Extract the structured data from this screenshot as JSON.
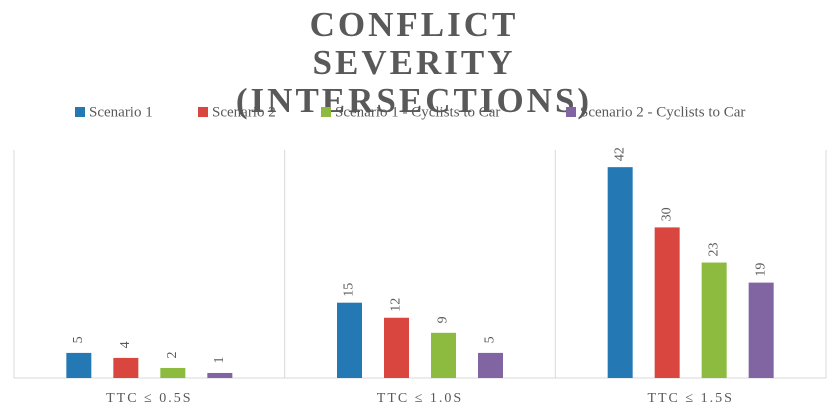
{
  "chart_data": {
    "type": "bar",
    "title": "CONFLICT SEVERITY (INTERSECTIONS)",
    "categories": [
      "TTC ≤ 0.5S",
      "TTC ≤ 1.0S",
      "TTC ≤ 1.5S"
    ],
    "series": [
      {
        "name": "Scenario 1",
        "color": "#2479b5",
        "values": [
          5,
          15,
          42
        ]
      },
      {
        "name": "Scenario 2",
        "color": "#d9463f",
        "values": [
          4,
          12,
          30
        ]
      },
      {
        "name": "Scenario 1 - Cyclists to Car",
        "color": "#8dbb3f",
        "values": [
          2,
          9,
          23
        ]
      },
      {
        "name": "Scenario 2 - Cyclists to Car",
        "color": "#8165a3",
        "values": [
          1,
          5,
          19
        ]
      }
    ],
    "legend": "top"
  }
}
